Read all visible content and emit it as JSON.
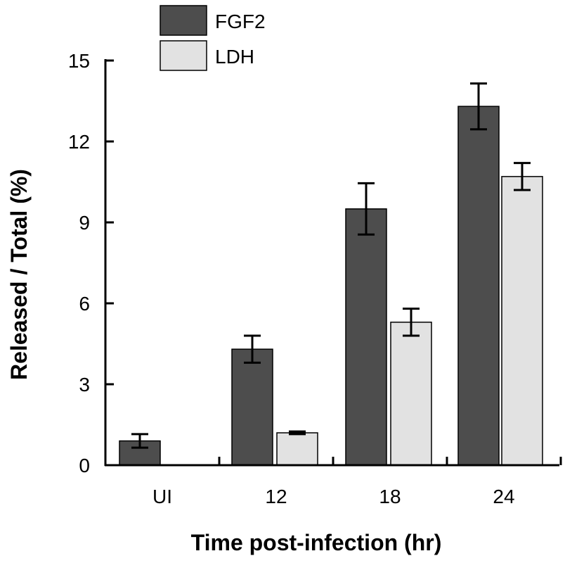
{
  "chart_data": {
    "type": "bar",
    "xlabel": "Time post-infection (hr)",
    "ylabel": "Released / Total (%)",
    "ylim": [
      0,
      15
    ],
    "yticks": [
      0,
      3,
      6,
      9,
      12,
      15
    ],
    "categories": [
      "UI",
      "12",
      "18",
      "24"
    ],
    "legend_position": "top-left",
    "grid": false,
    "series": [
      {
        "name": "FGF2",
        "color": "#4d4d4d",
        "values": [
          0.9,
          4.3,
          9.5,
          13.3
        ],
        "errors": [
          0.25,
          0.5,
          0.95,
          0.85
        ]
      },
      {
        "name": "LDH",
        "color": "#e2e2e2",
        "values": [
          0,
          1.2,
          5.3,
          10.7
        ],
        "errors": [
          0,
          0.05,
          0.5,
          0.5
        ]
      }
    ]
  }
}
